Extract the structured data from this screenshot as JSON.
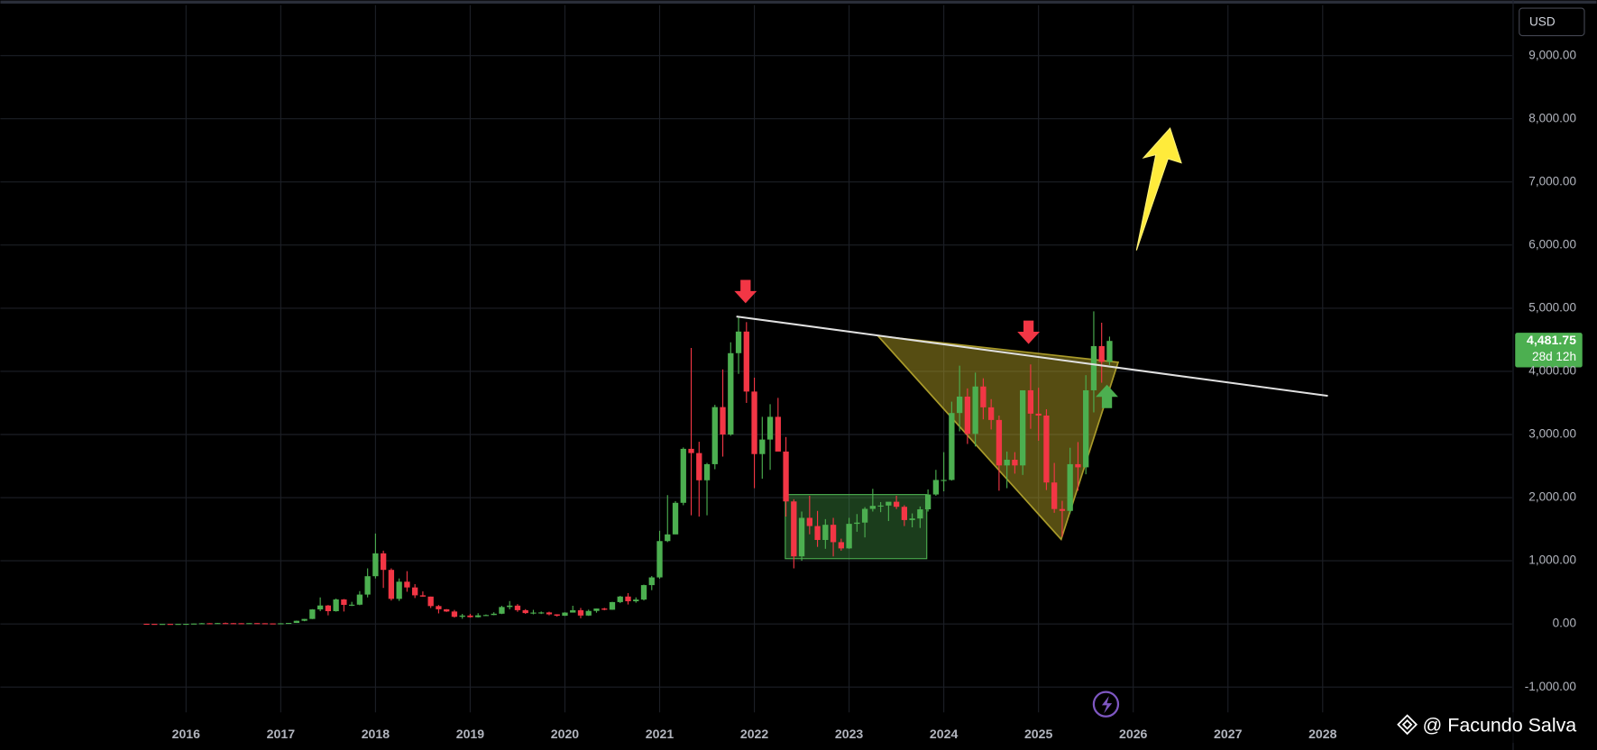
{
  "chart_data": {
    "type": "candlestick",
    "currency": "USD",
    "watermark": "@ Facundo Salva",
    "last_price_label": "4,481.75",
    "countdown": "28d 12h",
    "up_color": "#4caf50",
    "down_color": "#f23645",
    "grid": true,
    "xlim": [
      2014.04,
      2030.0
    ],
    "xticks": [
      2016,
      2017,
      2018,
      2019,
      2020,
      2021,
      2022,
      2023,
      2024,
      2025,
      2026,
      2027,
      2028
    ],
    "ylim": [
      -1400,
      9800
    ],
    "yticks": [
      {
        "value": -1000,
        "label": "-1,000.00"
      },
      {
        "value": 0,
        "label": "0.00"
      },
      {
        "value": 1000,
        "label": "1,000.00"
      },
      {
        "value": 2000,
        "label": "2,000.00"
      },
      {
        "value": 3000,
        "label": "3,000.00"
      },
      {
        "value": 4000,
        "label": "4,000.00"
      },
      {
        "value": 5000,
        "label": "5,000.00"
      },
      {
        "value": 6000,
        "label": "6,000.00"
      },
      {
        "value": 7000,
        "label": "7,000.00"
      },
      {
        "value": 8000,
        "label": "8,000.00"
      },
      {
        "value": 9000,
        "label": "9,000.00"
      }
    ],
    "x": [
      "2015-08",
      "2015-09",
      "2015-10",
      "2015-11",
      "2015-12",
      "2016-01",
      "2016-02",
      "2016-03",
      "2016-04",
      "2016-05",
      "2016-06",
      "2016-07",
      "2016-08",
      "2016-09",
      "2016-10",
      "2016-11",
      "2016-12",
      "2017-01",
      "2017-02",
      "2017-03",
      "2017-04",
      "2017-05",
      "2017-06",
      "2017-07",
      "2017-08",
      "2017-09",
      "2017-10",
      "2017-11",
      "2017-12",
      "2018-01",
      "2018-02",
      "2018-03",
      "2018-04",
      "2018-05",
      "2018-06",
      "2018-07",
      "2018-08",
      "2018-09",
      "2018-10",
      "2018-11",
      "2018-12",
      "2019-01",
      "2019-02",
      "2019-03",
      "2019-04",
      "2019-05",
      "2019-06",
      "2019-07",
      "2019-08",
      "2019-09",
      "2019-10",
      "2019-11",
      "2019-12",
      "2020-01",
      "2020-02",
      "2020-03",
      "2020-04",
      "2020-05",
      "2020-06",
      "2020-07",
      "2020-08",
      "2020-09",
      "2020-10",
      "2020-11",
      "2020-12",
      "2021-01",
      "2021-02",
      "2021-03",
      "2021-04",
      "2021-05",
      "2021-06",
      "2021-07",
      "2021-08",
      "2021-09",
      "2021-10",
      "2021-11",
      "2021-12",
      "2022-01",
      "2022-02",
      "2022-03",
      "2022-04",
      "2022-05",
      "2022-06",
      "2022-07",
      "2022-08",
      "2022-09",
      "2022-10",
      "2022-11",
      "2022-12",
      "2023-01",
      "2023-02",
      "2023-03",
      "2023-04",
      "2023-05",
      "2023-06",
      "2023-07",
      "2023-08",
      "2023-09",
      "2023-10",
      "2023-11",
      "2023-12",
      "2024-01",
      "2024-02",
      "2024-03",
      "2024-04",
      "2024-05",
      "2024-06",
      "2024-07",
      "2024-08",
      "2024-09",
      "2024-10",
      "2024-11",
      "2024-12",
      "2025-01",
      "2025-02",
      "2025-03",
      "2025-04",
      "2025-05",
      "2025-06",
      "2025-07",
      "2025-08",
      "2025-09",
      "2025-10"
    ],
    "open": [
      2.8,
      1.4,
      0.9,
      0.9,
      0.87,
      0.93,
      2.2,
      6.3,
      11.4,
      8.8,
      14,
      12.5,
      11.8,
      11.5,
      13.2,
      11.2,
      8.6,
      8.2,
      10.6,
      16.1,
      50,
      79,
      230,
      292,
      202,
      388,
      302,
      305,
      465,
      756,
      1118,
      856,
      397,
      669,
      578,
      453,
      433,
      283,
      232,
      197,
      113,
      133,
      107,
      136,
      141,
      162,
      268,
      290,
      218,
      172,
      180,
      182,
      152,
      130,
      180,
      217,
      133,
      206,
      244,
      225,
      346,
      434,
      359,
      386,
      615,
      737,
      1312,
      1418,
      1918,
      2773,
      2706,
      2275,
      2530,
      3434,
      3000,
      4288,
      4630,
      3680,
      2690,
      2920,
      3280,
      2730,
      1940,
      1070,
      1680,
      1550,
      1330,
      1570,
      1295,
      1196,
      1585,
      1605,
      1822,
      1870,
      1875,
      1935,
      1855,
      1645,
      1670,
      1815,
      2050,
      2280,
      2280,
      3340,
      3600,
      3010,
      3760,
      3430,
      3230,
      2510,
      2600,
      2510,
      3700,
      3330,
      3300,
      2240,
      1820,
      1790,
      2530,
      2480,
      3700,
      4400,
      4150
    ],
    "high": [
      3.0,
      1.5,
      1.2,
      1.0,
      0.98,
      2.5,
      6.4,
      15,
      12.5,
      14.5,
      21.5,
      14.9,
      12.5,
      13.5,
      13.5,
      11.3,
      8.8,
      11.6,
      16.5,
      53,
      80,
      234,
      420,
      300,
      402,
      395,
      350,
      520,
      880,
      1432,
      1160,
      880,
      720,
      836,
      630,
      515,
      433,
      300,
      235,
      222,
      159,
      160,
      170,
      150,
      185,
      287,
      362,
      314,
      234,
      223,
      197,
      194,
      154,
      185,
      288,
      253,
      227,
      245,
      256,
      350,
      445,
      488,
      421,
      622,
      758,
      1475,
      2040,
      1945,
      2795,
      4370,
      2885,
      2550,
      3470,
      4030,
      4460,
      4870,
      4780,
      3900,
      3280,
      3480,
      3580,
      2960,
      1975,
      1780,
      2030,
      1790,
      1660,
      1680,
      1350,
      1680,
      1740,
      1850,
      2140,
      1930,
      1930,
      2030,
      1880,
      1750,
      1860,
      2130,
      2440,
      2720,
      3520,
      4090,
      3730,
      3980,
      3890,
      3560,
      3300,
      2730,
      2720,
      3700,
      4110,
      3740,
      3400,
      2550,
      1950,
      2790,
      2880,
      3940,
      4950,
      4770,
      4550
    ],
    "low": [
      0.6,
      0.6,
      0.4,
      0.8,
      0.8,
      0.9,
      2.2,
      6.3,
      6.9,
      8.6,
      11,
      10.1,
      10.5,
      11.5,
      10.7,
      7.8,
      5.9,
      7.9,
      10.4,
      16,
      43,
      77,
      202,
      136,
      195,
      197,
      283,
      297,
      420,
      720,
      570,
      370,
      365,
      510,
      410,
      431,
      252,
      167,
      190,
      101,
      82,
      100,
      102,
      130,
      138,
      156,
      232,
      192,
      160,
      152,
      157,
      136,
      117,
      126,
      180,
      90,
      127,
      178,
      216,
      223,
      330,
      308,
      336,
      371,
      535,
      715,
      1296,
      1420,
      1880,
      1720,
      1700,
      1720,
      2450,
      2650,
      2980,
      3960,
      3500,
      2150,
      2300,
      2440,
      2800,
      1700,
      880,
      1000,
      1420,
      1220,
      1190,
      1070,
      1160,
      1190,
      1460,
      1370,
      1780,
      1770,
      1630,
      1820,
      1550,
      1530,
      1520,
      1780,
      2030,
      2100,
      2270,
      3050,
      2850,
      2810,
      3240,
      3080,
      2110,
      2150,
      2380,
      2360,
      3090,
      2900,
      2120,
      1760,
      1380,
      1750,
      2110,
      2370,
      3350,
      3820,
      4100
    ],
    "close": [
      1.4,
      0.9,
      0.9,
      0.87,
      0.93,
      2.2,
      6.3,
      11.4,
      8.8,
      14,
      12.5,
      11.8,
      11.5,
      13.2,
      11.2,
      8.6,
      8.2,
      10.6,
      16.1,
      50,
      79,
      230,
      292,
      202,
      388,
      302,
      305,
      465,
      756,
      1118,
      856,
      397,
      669,
      578,
      453,
      433,
      283,
      232,
      197,
      113,
      133,
      107,
      136,
      141,
      162,
      268,
      290,
      218,
      172,
      180,
      182,
      152,
      130,
      180,
      217,
      133,
      206,
      244,
      225,
      346,
      434,
      359,
      386,
      615,
      737,
      1312,
      1418,
      1918,
      2773,
      2706,
      2275,
      2530,
      3434,
      3000,
      4288,
      4630,
      3680,
      2690,
      2920,
      3280,
      2730,
      1940,
      1070,
      1680,
      1550,
      1330,
      1570,
      1295,
      1196,
      1585,
      1605,
      1822,
      1870,
      1875,
      1935,
      1855,
      1645,
      1670,
      1815,
      2050,
      2280,
      2280,
      3340,
      3600,
      3010,
      3760,
      3430,
      3230,
      2510,
      2600,
      2510,
      3700,
      3330,
      3300,
      2240,
      1820,
      1790,
      2530,
      2480,
      3700,
      4400,
      4150,
      4481.75
    ]
  }
}
